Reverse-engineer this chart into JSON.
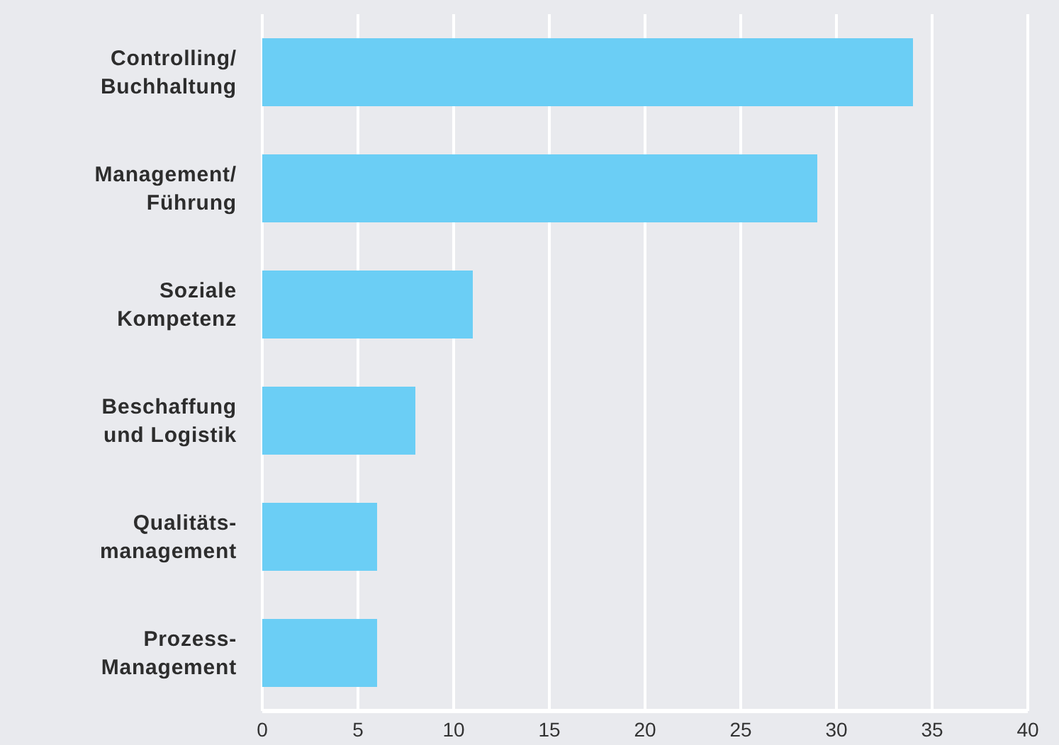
{
  "chart_data": {
    "type": "bar",
    "orientation": "horizontal",
    "categories": [
      "Controlling/\nBuchhaltung",
      "Management/\nFührung",
      "Soziale\nKompetenz",
      "Beschaffung\nund Logistik",
      "Qualitäts-\nmanagement",
      "Prozess-\nManagement"
    ],
    "values": [
      34,
      29,
      11,
      8,
      6,
      6
    ],
    "color": "#6bcef5",
    "xlim": [
      0,
      40
    ],
    "xticks": [
      0,
      5,
      10,
      15,
      20,
      25,
      30,
      35,
      40
    ],
    "grid": "x"
  }
}
